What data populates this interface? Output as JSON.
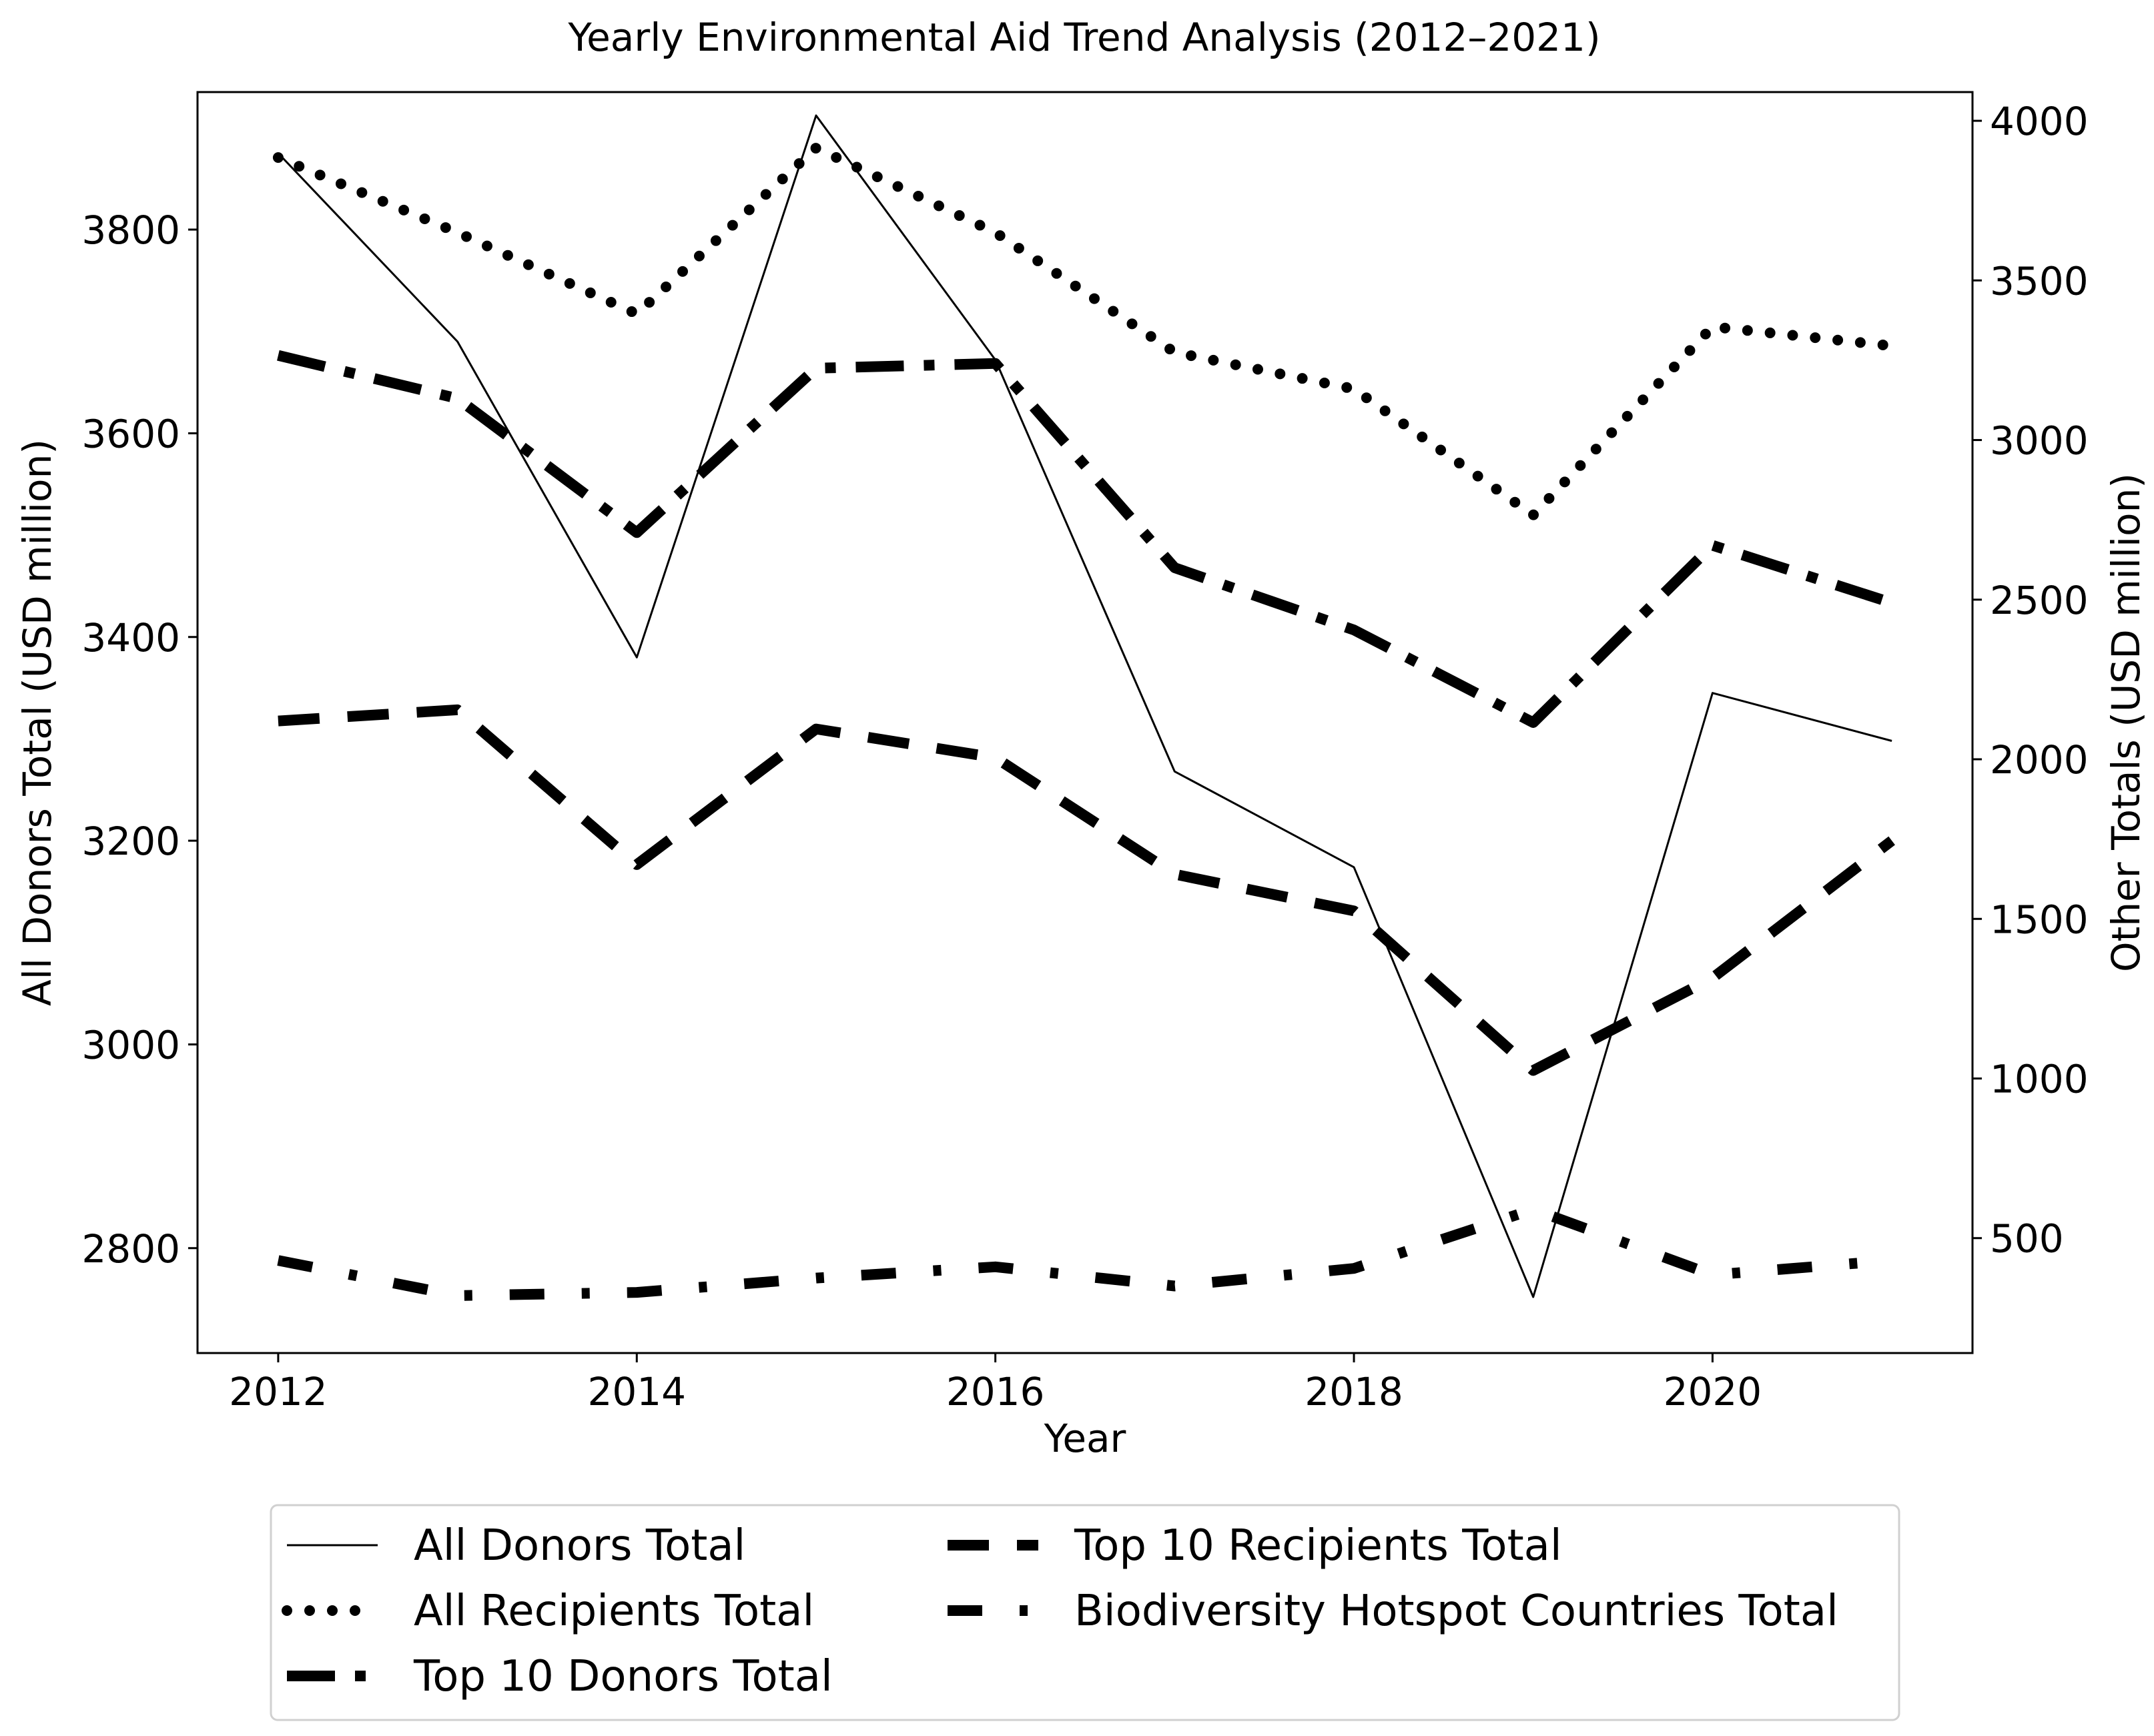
{
  "chart_data": {
    "type": "line",
    "title": "Yearly Environmental Aid Trend Analysis (2012–2021)",
    "xlabel": "Year",
    "ylabel_left": "All Donors Total (USD million)",
    "ylabel_right": "Other Totals (USD million)",
    "x": [
      2012,
      2013,
      2014,
      2015,
      2016,
      2017,
      2018,
      2019,
      2020,
      2021
    ],
    "xlim": [
      2011.55,
      2021.45
    ],
    "ylim_left": [
      2697,
      3935
    ],
    "ylim_right": [
      140,
      4090
    ],
    "xticks": [
      2012,
      2014,
      2016,
      2018,
      2020
    ],
    "xtick_labels": [
      "2012",
      "2014",
      "2016",
      "2018",
      "2020"
    ],
    "yticks_left": [
      2800,
      3000,
      3200,
      3400,
      3600,
      3800
    ],
    "ytick_labels_left": [
      "2800",
      "3000",
      "3200",
      "3400",
      "3600",
      "3800"
    ],
    "yticks_right": [
      500,
      1000,
      1500,
      2000,
      2500,
      3000,
      3500,
      4000
    ],
    "ytick_labels_right": [
      "500",
      "1000",
      "1500",
      "2000",
      "2500",
      "3000",
      "3500",
      "4000"
    ],
    "grid": false,
    "legend_position": "below",
    "series": [
      {
        "name": "All Donors Total",
        "axis": "left",
        "style": "solid",
        "color": "#000000",
        "values": [
          3875,
          3690,
          3380,
          3912,
          3672,
          3268,
          3174,
          2752,
          3345,
          3298
        ]
      },
      {
        "name": "All Recipients Total",
        "axis": "right",
        "style": "dotted",
        "color": "#000000",
        "values": [
          3885,
          3650,
          3395,
          3915,
          3650,
          3275,
          3160,
          2765,
          3355,
          3295
        ]
      },
      {
        "name": "Top 10 Donors Total",
        "axis": "right",
        "style": "dashdot",
        "color": "#000000",
        "values": [
          3265,
          3130,
          2710,
          3225,
          3240,
          2600,
          2405,
          2115,
          2670,
          2490
        ]
      },
      {
        "name": "Top 10 Recipients Total",
        "axis": "right",
        "style": "dashed",
        "color": "#000000",
        "values": [
          2120,
          2155,
          1670,
          2095,
          2005,
          1640,
          1525,
          1025,
          1315,
          1745
        ]
      },
      {
        "name": "Biodiversity Hotspot Countries Total",
        "axis": "right",
        "style": "loosedashdot",
        "color": "#000000",
        "values": [
          430,
          320,
          330,
          375,
          410,
          350,
          405,
          590,
          385,
          430
        ]
      }
    ]
  }
}
